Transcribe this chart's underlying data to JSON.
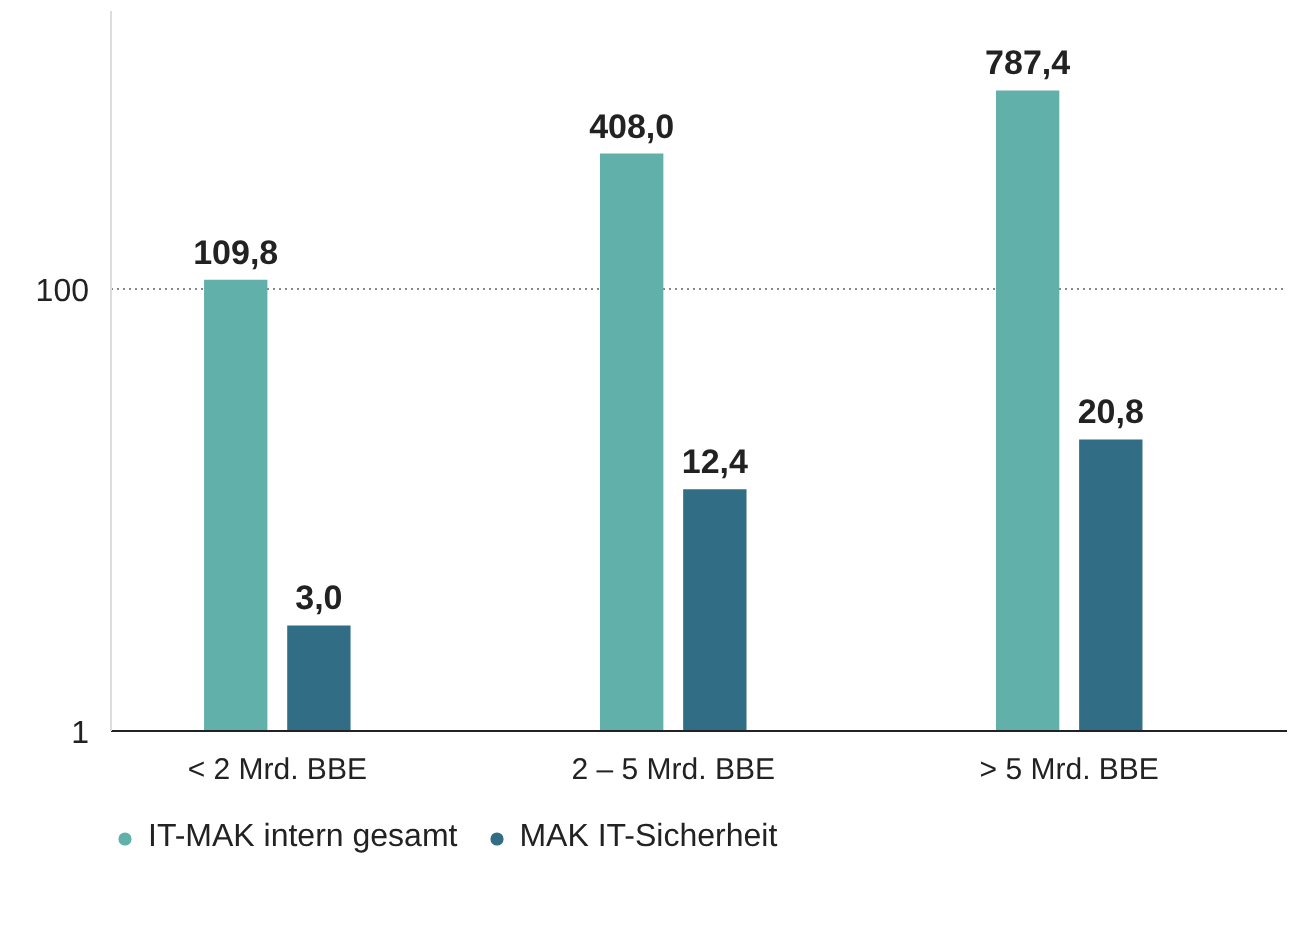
{
  "chart_data": {
    "type": "bar",
    "categories": [
      "< 2 Mrd. BBE",
      "2 – 5 Mrd. BBE",
      "> 5 Mrd. BBE"
    ],
    "series": [
      {
        "name": "IT-MAK intern gesamt",
        "color": "#62b0aa",
        "values": [
          109.8,
          408.0,
          787.4
        ],
        "value_labels": [
          "109,8",
          "408,0",
          "787,4"
        ]
      },
      {
        "name": "MAK IT-Sicherheit",
        "color": "#316d84",
        "values": [
          3.0,
          12.4,
          20.8
        ],
        "value_labels": [
          "3,0",
          "12,4",
          "20,8"
        ]
      }
    ],
    "log": true,
    "ylim": [
      1,
      1800
    ],
    "yticks": [
      1,
      100
    ],
    "grid": "y",
    "legend": "bottom left"
  }
}
